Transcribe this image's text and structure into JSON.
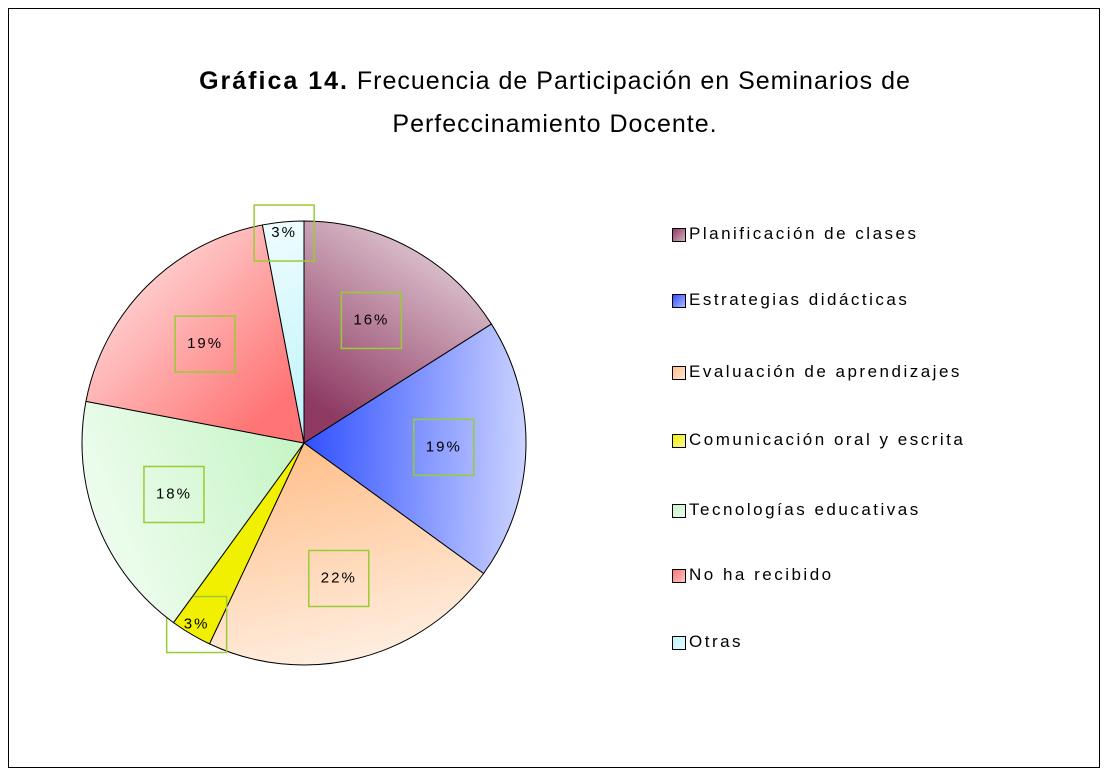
{
  "chart_data": {
    "type": "pie",
    "title_label": "Gráfica 14.",
    "title": "Frecuencia de Participación en Seminarios de Perfeccinamiento Docente.",
    "categories": [
      "Planificación de clases",
      "Estrategias didácticas",
      "Evaluación de aprendizajes",
      "Comunicación oral y escrita",
      "Tecnologías educativas",
      "No ha recibido",
      "Otras"
    ],
    "values": [
      16,
      19,
      22,
      3,
      18,
      19,
      3
    ],
    "value_labels": [
      "16%",
      "19%",
      "22%",
      "3%",
      "18%",
      "19%",
      "3%"
    ],
    "colors": [
      "#8e3a62",
      "#3050ff",
      "#ffc08c",
      "#f0f000",
      "#c8f5c8",
      "#ff7474",
      "#bdf4fb"
    ],
    "legend": "right"
  }
}
